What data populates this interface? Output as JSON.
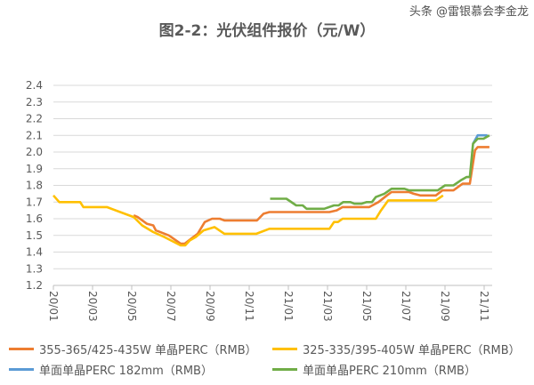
{
  "chart_data": {
    "type": "line",
    "title": "图2-2：光伏组件报价（元/W）",
    "xlabel": "",
    "ylabel": "",
    "ylim": [
      1.2,
      2.4
    ],
    "yticks": [
      "1.2",
      "1.3",
      "1.4",
      "1.5",
      "1.6",
      "1.7",
      "1.8",
      "1.9",
      "2.0",
      "2.1",
      "2.2",
      "2.3",
      "2.4"
    ],
    "xlim": [
      "2020-01-01",
      "2021-12-01"
    ],
    "xticks": [
      {
        "label": "20/01",
        "date": "2020-01-01"
      },
      {
        "label": "20/03",
        "date": "2020-03-01"
      },
      {
        "label": "20/05",
        "date": "2020-05-01"
      },
      {
        "label": "20/07",
        "date": "2020-07-01"
      },
      {
        "label": "20/09",
        "date": "2020-09-01"
      },
      {
        "label": "20/11",
        "date": "2020-11-01"
      },
      {
        "label": "21/01",
        "date": "2021-01-01"
      },
      {
        "label": "21/03",
        "date": "2021-03-01"
      },
      {
        "label": "21/05",
        "date": "2021-05-01"
      },
      {
        "label": "21/07",
        "date": "2021-07-01"
      },
      {
        "label": "21/09",
        "date": "2021-09-01"
      },
      {
        "label": "21/11",
        "date": "2021-11-01"
      }
    ],
    "grid": true,
    "legend_placement": "bottom",
    "series": [
      {
        "name": "355-365/425-435W 单晶PERC（RMB）",
        "color": "#ED7D31",
        "points": [
          [
            "2020-05-04",
            1.62
          ],
          [
            "2020-05-10",
            1.61
          ],
          [
            "2020-05-24",
            1.57
          ],
          [
            "2020-06-04",
            1.56
          ],
          [
            "2020-06-08",
            1.53
          ],
          [
            "2020-06-28",
            1.5
          ],
          [
            "2020-07-16",
            1.45
          ],
          [
            "2020-07-22",
            1.45
          ],
          [
            "2020-08-02",
            1.48
          ],
          [
            "2020-08-12",
            1.51
          ],
          [
            "2020-08-23",
            1.58
          ],
          [
            "2020-09-04",
            1.6
          ],
          [
            "2020-09-16",
            1.6
          ],
          [
            "2020-09-23",
            1.59
          ],
          [
            "2020-11-13",
            1.59
          ],
          [
            "2020-11-23",
            1.63
          ],
          [
            "2020-12-02",
            1.64
          ],
          [
            "2021-03-04",
            1.64
          ],
          [
            "2021-03-15",
            1.65
          ],
          [
            "2021-03-24",
            1.67
          ],
          [
            "2021-05-05",
            1.67
          ],
          [
            "2021-05-19",
            1.7
          ],
          [
            "2021-06-02",
            1.74
          ],
          [
            "2021-06-09",
            1.76
          ],
          [
            "2021-07-06",
            1.76
          ],
          [
            "2021-07-13",
            1.75
          ],
          [
            "2021-07-23",
            1.74
          ],
          [
            "2021-08-17",
            1.74
          ],
          [
            "2021-08-27",
            1.77
          ],
          [
            "2021-09-14",
            1.77
          ],
          [
            "2021-09-28",
            1.81
          ],
          [
            "2021-10-09",
            1.81
          ],
          [
            "2021-10-17",
            2.01
          ],
          [
            "2021-10-21",
            2.03
          ],
          [
            "2021-11-09",
            2.03
          ]
        ]
      },
      {
        "name": "325-335/395-405W 单晶PERC（RMB）",
        "color": "#FFC000",
        "points": [
          [
            "2020-01-01",
            1.74
          ],
          [
            "2020-01-10",
            1.7
          ],
          [
            "2020-02-12",
            1.7
          ],
          [
            "2020-02-17",
            1.67
          ],
          [
            "2020-03-23",
            1.67
          ],
          [
            "2020-05-04",
            1.61
          ],
          [
            "2020-05-17",
            1.56
          ],
          [
            "2020-06-04",
            1.52
          ],
          [
            "2020-06-21",
            1.49
          ],
          [
            "2020-07-16",
            1.44
          ],
          [
            "2020-07-23",
            1.44
          ],
          [
            "2020-07-30",
            1.47
          ],
          [
            "2020-08-09",
            1.49
          ],
          [
            "2020-08-21",
            1.53
          ],
          [
            "2020-09-08",
            1.55
          ],
          [
            "2020-09-23",
            1.51
          ],
          [
            "2020-11-12",
            1.51
          ],
          [
            "2020-12-02",
            1.54
          ],
          [
            "2021-03-04",
            1.54
          ],
          [
            "2021-03-11",
            1.58
          ],
          [
            "2021-03-17",
            1.58
          ],
          [
            "2021-03-24",
            1.6
          ],
          [
            "2021-05-15",
            1.6
          ],
          [
            "2021-05-23",
            1.65
          ],
          [
            "2021-06-04",
            1.71
          ],
          [
            "2021-08-17",
            1.71
          ],
          [
            "2021-08-28",
            1.74
          ]
        ]
      },
      {
        "name": "单面单晶PERC 182mm（RMB）",
        "color": "#5B9BD5",
        "points": [
          [
            "2021-10-14",
            2.05
          ],
          [
            "2021-10-21",
            2.1
          ],
          [
            "2021-11-06",
            2.1
          ]
        ]
      },
      {
        "name": "单面单晶PERC 210mm（RMB）",
        "color": "#70AD47",
        "points": [
          [
            "2020-12-03",
            1.72
          ],
          [
            "2020-12-28",
            1.72
          ],
          [
            "2021-01-13",
            1.68
          ],
          [
            "2021-01-23",
            1.68
          ],
          [
            "2021-01-29",
            1.66
          ],
          [
            "2021-02-26",
            1.66
          ],
          [
            "2021-03-11",
            1.68
          ],
          [
            "2021-03-18",
            1.68
          ],
          [
            "2021-03-25",
            1.7
          ],
          [
            "2021-04-06",
            1.7
          ],
          [
            "2021-04-12",
            1.69
          ],
          [
            "2021-04-23",
            1.69
          ],
          [
            "2021-05-01",
            1.7
          ],
          [
            "2021-05-09",
            1.7
          ],
          [
            "2021-05-15",
            1.73
          ],
          [
            "2021-05-28",
            1.75
          ],
          [
            "2021-06-09",
            1.78
          ],
          [
            "2021-06-29",
            1.78
          ],
          [
            "2021-07-06",
            1.77
          ],
          [
            "2021-08-20",
            1.77
          ],
          [
            "2021-09-01",
            1.8
          ],
          [
            "2021-09-14",
            1.8
          ],
          [
            "2021-09-25",
            1.83
          ],
          [
            "2021-10-04",
            1.85
          ],
          [
            "2021-10-09",
            1.85
          ],
          [
            "2021-10-14",
            2.05
          ],
          [
            "2021-10-21",
            2.08
          ],
          [
            "2021-10-30",
            2.08
          ],
          [
            "2021-11-09",
            2.1
          ]
        ]
      }
    ]
  },
  "watermark": "头条 @雷银慕会李金龙"
}
